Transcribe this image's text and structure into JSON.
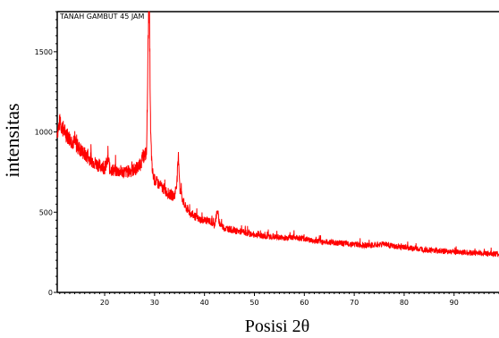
{
  "chart_data": {
    "type": "line",
    "title": "",
    "xlabel": "Posisi 2θ",
    "ylabel": "intensitas",
    "xlim": [
      10.5,
      99
    ],
    "ylim": [
      0,
      1750
    ],
    "x_ticks": [
      20,
      30,
      40,
      50,
      60,
      70,
      80,
      90
    ],
    "y_ticks": [
      0,
      500,
      1000,
      1500
    ],
    "grid": false,
    "line_color": "#ff0000",
    "series": [
      {
        "name": "TANAH GAMBUT 45 JAM",
        "points": [
          [
            10.5,
            1000
          ],
          [
            11,
            1060
          ],
          [
            12,
            1000
          ],
          [
            13,
            960
          ],
          [
            14,
            930
          ],
          [
            15,
            895
          ],
          [
            16,
            860
          ],
          [
            17,
            835
          ],
          [
            18,
            810
          ],
          [
            19,
            790
          ],
          [
            20,
            775
          ],
          [
            20.8,
            830
          ],
          [
            21,
            770
          ],
          [
            22,
            760
          ],
          [
            23,
            755
          ],
          [
            24,
            750
          ],
          [
            25,
            755
          ],
          [
            26,
            765
          ],
          [
            27,
            790
          ],
          [
            27.8,
            850
          ],
          [
            28.4,
            870
          ],
          [
            28.8,
            1750
          ],
          [
            29.0,
            1650
          ],
          [
            29.2,
            1000
          ],
          [
            29.5,
            760
          ],
          [
            30,
            700
          ],
          [
            31,
            670
          ],
          [
            32,
            640
          ],
          [
            33,
            610
          ],
          [
            34,
            600
          ],
          [
            34.5,
            700
          ],
          [
            34.8,
            850
          ],
          [
            35.1,
            640
          ],
          [
            36,
            540
          ],
          [
            37,
            500
          ],
          [
            38,
            475
          ],
          [
            39,
            455
          ],
          [
            40,
            450
          ],
          [
            41,
            445
          ],
          [
            42,
            420
          ],
          [
            42.6,
            510
          ],
          [
            43,
            430
          ],
          [
            44,
            400
          ],
          [
            45,
            395
          ],
          [
            46,
            385
          ],
          [
            47,
            380
          ],
          [
            48,
            375
          ],
          [
            49,
            365
          ],
          [
            50,
            360
          ],
          [
            52,
            350
          ],
          [
            54,
            345
          ],
          [
            56,
            340
          ],
          [
            58,
            345
          ],
          [
            60,
            335
          ],
          [
            62,
            320
          ],
          [
            64,
            315
          ],
          [
            66,
            310
          ],
          [
            68,
            305
          ],
          [
            70,
            300
          ],
          [
            72,
            295
          ],
          [
            74,
            292
          ],
          [
            76,
            305
          ],
          [
            78,
            285
          ],
          [
            80,
            280
          ],
          [
            82,
            272
          ],
          [
            84,
            268
          ],
          [
            86,
            262
          ],
          [
            88,
            256
          ],
          [
            90,
            252
          ],
          [
            92,
            250
          ],
          [
            94,
            246
          ],
          [
            96,
            244
          ],
          [
            98,
            240
          ],
          [
            99,
            238
          ]
        ]
      }
    ]
  }
}
